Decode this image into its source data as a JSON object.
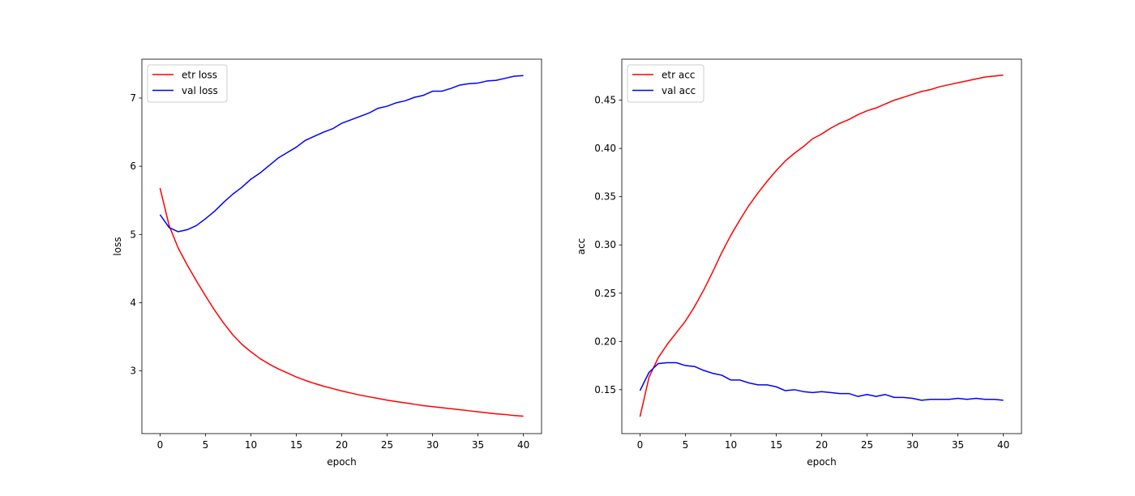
{
  "chart_data": [
    {
      "type": "line",
      "title": "",
      "xlabel": "epoch",
      "ylabel": "loss",
      "xlim": [
        -2,
        42
      ],
      "ylim": [
        2.08,
        7.57
      ],
      "xticks": [
        0,
        5,
        10,
        15,
        20,
        25,
        30,
        35,
        40
      ],
      "yticks": [
        3,
        4,
        5,
        6,
        7
      ],
      "grid": false,
      "legend": "upper left",
      "series": [
        {
          "name": "etr loss",
          "color": "#ff0000",
          "x": [
            0,
            1,
            2,
            3,
            4,
            5,
            6,
            7,
            8,
            9,
            10,
            11,
            12,
            13,
            14,
            15,
            16,
            17,
            18,
            19,
            20,
            21,
            22,
            23,
            24,
            25,
            26,
            27,
            28,
            29,
            30,
            31,
            32,
            33,
            34,
            35,
            36,
            37,
            38,
            39,
            40
          ],
          "values": [
            5.68,
            5.13,
            4.8,
            4.55,
            4.32,
            4.1,
            3.89,
            3.7,
            3.53,
            3.39,
            3.28,
            3.18,
            3.1,
            3.03,
            2.97,
            2.91,
            2.86,
            2.815,
            2.775,
            2.74,
            2.705,
            2.675,
            2.645,
            2.62,
            2.595,
            2.57,
            2.55,
            2.53,
            2.51,
            2.49,
            2.475,
            2.46,
            2.445,
            2.43,
            2.415,
            2.4,
            2.385,
            2.37,
            2.36,
            2.345,
            2.335
          ]
        },
        {
          "name": "val loss",
          "color": "#0000ff",
          "x": [
            0,
            1,
            2,
            3,
            4,
            5,
            6,
            7,
            8,
            9,
            10,
            11,
            12,
            13,
            14,
            15,
            16,
            17,
            18,
            19,
            20,
            21,
            22,
            23,
            24,
            25,
            26,
            27,
            28,
            29,
            30,
            31,
            32,
            33,
            34,
            35,
            36,
            37,
            38,
            39,
            40
          ],
          "values": [
            5.29,
            5.1,
            5.04,
            5.07,
            5.13,
            5.23,
            5.34,
            5.47,
            5.59,
            5.69,
            5.81,
            5.9,
            6.01,
            6.12,
            6.2,
            6.28,
            6.38,
            6.44,
            6.5,
            6.55,
            6.63,
            6.68,
            6.73,
            6.78,
            6.85,
            6.88,
            6.93,
            6.96,
            7.01,
            7.04,
            7.1,
            7.1,
            7.14,
            7.19,
            7.21,
            7.22,
            7.25,
            7.26,
            7.29,
            7.32,
            7.33
          ]
        }
      ]
    },
    {
      "type": "line",
      "title": "",
      "xlabel": "epoch",
      "ylabel": "acc",
      "xlim": [
        -2,
        42
      ],
      "ylim": [
        0.1045,
        0.4925
      ],
      "xticks": [
        0,
        5,
        10,
        15,
        20,
        25,
        30,
        35,
        40
      ],
      "yticks": [
        0.15,
        0.2,
        0.25,
        0.3,
        0.35,
        0.4,
        0.45
      ],
      "ytick_labels": [
        "0.15",
        "0.20",
        "0.25",
        "0.30",
        "0.35",
        "0.40",
        "0.45"
      ],
      "grid": false,
      "legend": "upper left",
      "series": [
        {
          "name": "etr acc",
          "color": "#ff0000",
          "x": [
            0,
            1,
            2,
            3,
            4,
            5,
            6,
            7,
            8,
            9,
            10,
            11,
            12,
            13,
            14,
            15,
            16,
            17,
            18,
            19,
            20,
            21,
            22,
            23,
            24,
            25,
            26,
            27,
            28,
            29,
            30,
            31,
            32,
            33,
            34,
            35,
            36,
            37,
            38,
            39,
            40
          ],
          "values": [
            0.122,
            0.163,
            0.183,
            0.197,
            0.209,
            0.221,
            0.236,
            0.253,
            0.272,
            0.292,
            0.31,
            0.326,
            0.341,
            0.354,
            0.366,
            0.377,
            0.387,
            0.395,
            0.402,
            0.41,
            0.415,
            0.421,
            0.426,
            0.43,
            0.435,
            0.439,
            0.442,
            0.446,
            0.45,
            0.453,
            0.456,
            0.459,
            0.461,
            0.464,
            0.466,
            0.468,
            0.47,
            0.472,
            0.474,
            0.475,
            0.476
          ]
        },
        {
          "name": "val acc",
          "color": "#0000ff",
          "x": [
            0,
            1,
            2,
            3,
            4,
            5,
            6,
            7,
            8,
            9,
            10,
            11,
            12,
            13,
            14,
            15,
            16,
            17,
            18,
            19,
            20,
            21,
            22,
            23,
            24,
            25,
            26,
            27,
            28,
            29,
            30,
            31,
            32,
            33,
            34,
            35,
            36,
            37,
            38,
            39,
            40
          ],
          "values": [
            0.149,
            0.168,
            0.177,
            0.178,
            0.178,
            0.175,
            0.174,
            0.17,
            0.167,
            0.165,
            0.16,
            0.16,
            0.157,
            0.155,
            0.155,
            0.153,
            0.149,
            0.15,
            0.148,
            0.147,
            0.148,
            0.147,
            0.146,
            0.146,
            0.143,
            0.145,
            0.143,
            0.145,
            0.142,
            0.142,
            0.141,
            0.139,
            0.14,
            0.14,
            0.14,
            0.141,
            0.14,
            0.141,
            0.14,
            0.14,
            0.139
          ]
        }
      ]
    }
  ]
}
